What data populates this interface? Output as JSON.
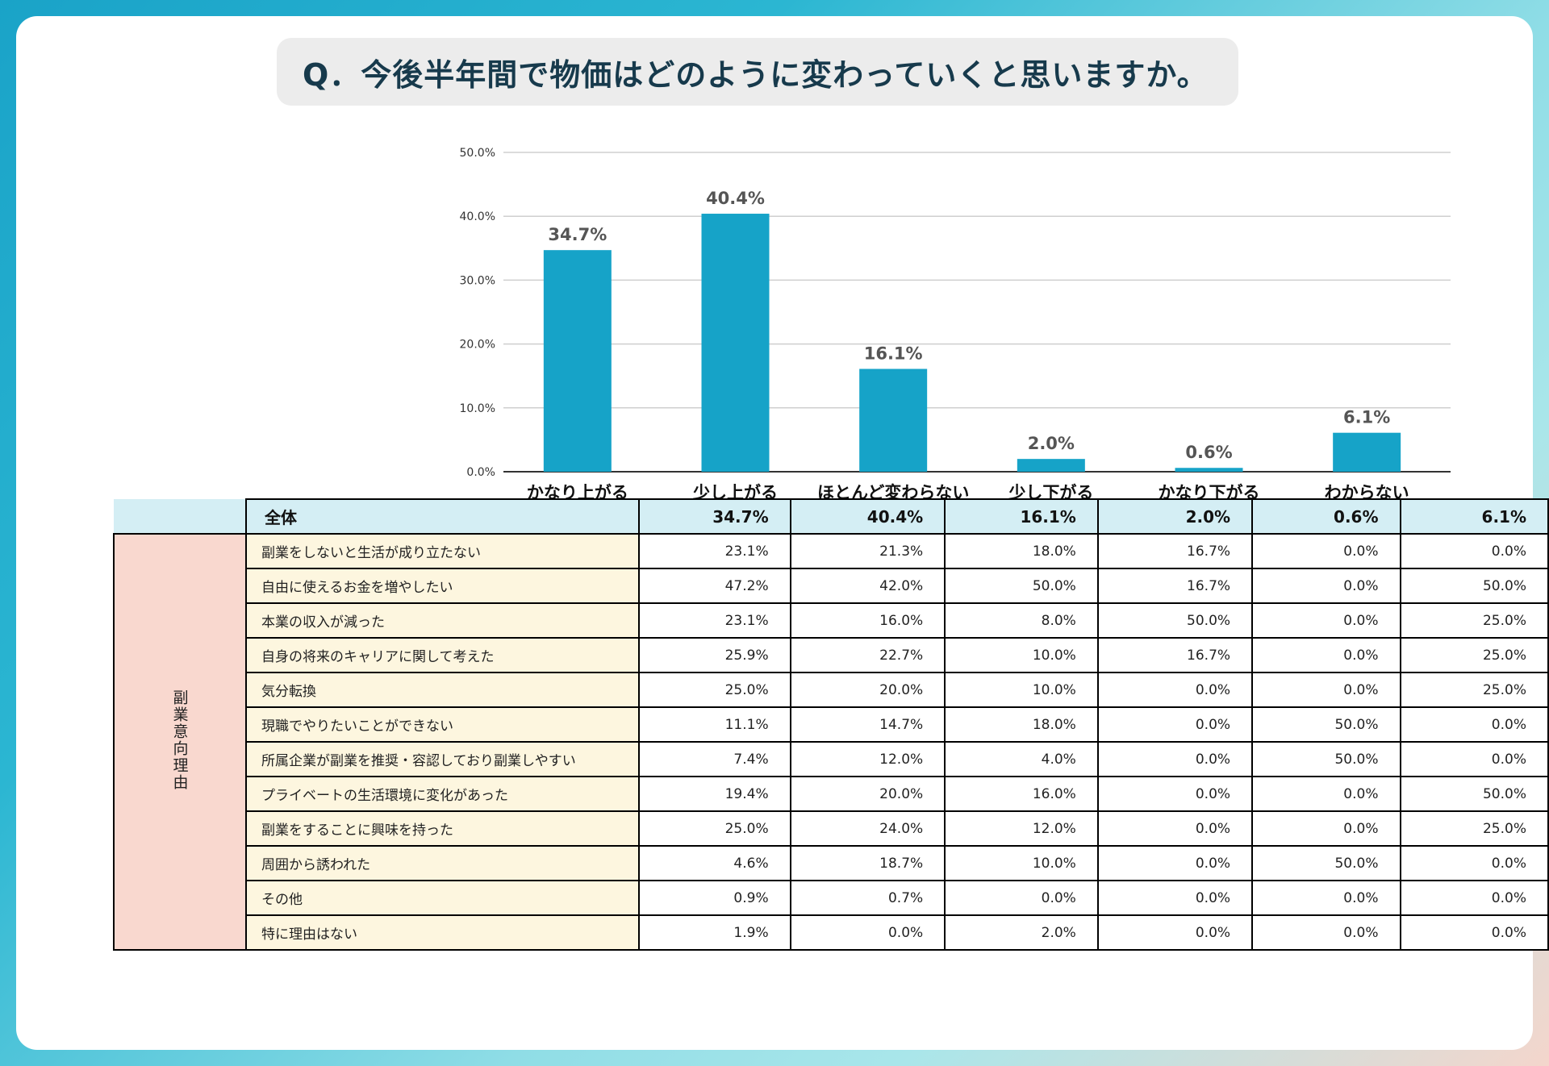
{
  "question": "Q．今後半年間で物価はどのように変わっていくと思いますか。",
  "chart_data": {
    "type": "bar",
    "title": "Q．今後半年間で物価はどのように変わっていくと思いますか。",
    "categories": [
      "かなり上がる",
      "少し上がる",
      "ほとんど変わらない",
      "少し下がる",
      "かなり下がる",
      "わからない"
    ],
    "values": [
      34.7,
      40.4,
      16.1,
      2.0,
      0.6,
      6.1
    ],
    "value_labels": [
      "34.7%",
      "40.4%",
      "16.1%",
      "2.0%",
      "0.6%",
      "6.1%"
    ],
    "y_ticks": [
      "0.0%",
      "10.0%",
      "20.0%",
      "30.0%",
      "40.0%",
      "50.0%"
    ],
    "ylim": [
      0,
      50
    ],
    "xlabel": "",
    "ylabel": "",
    "grid": true,
    "bar_color": "#16a3c8"
  },
  "table": {
    "side_label": "副業意向理由",
    "total": {
      "label": "全体",
      "values": [
        "34.7%",
        "40.4%",
        "16.1%",
        "2.0%",
        "0.6%",
        "6.1%"
      ]
    },
    "rows": [
      {
        "label": "副業をしないと生活が成り立たない",
        "values": [
          "23.1%",
          "21.3%",
          "18.0%",
          "16.7%",
          "0.0%",
          "0.0%"
        ]
      },
      {
        "label": "自由に使えるお金を増やしたい",
        "values": [
          "47.2%",
          "42.0%",
          "50.0%",
          "16.7%",
          "0.0%",
          "50.0%"
        ]
      },
      {
        "label": "本業の収入が減った",
        "values": [
          "23.1%",
          "16.0%",
          "8.0%",
          "50.0%",
          "0.0%",
          "25.0%"
        ]
      },
      {
        "label": "自身の将来のキャリアに関して考えた",
        "values": [
          "25.9%",
          "22.7%",
          "10.0%",
          "16.7%",
          "0.0%",
          "25.0%"
        ]
      },
      {
        "label": "気分転換",
        "values": [
          "25.0%",
          "20.0%",
          "10.0%",
          "0.0%",
          "0.0%",
          "25.0%"
        ]
      },
      {
        "label": "現職でやりたいことができない",
        "values": [
          "11.1%",
          "14.7%",
          "18.0%",
          "0.0%",
          "50.0%",
          "0.0%"
        ]
      },
      {
        "label": "所属企業が副業を推奨・容認しており副業しやすい",
        "values": [
          "7.4%",
          "12.0%",
          "4.0%",
          "0.0%",
          "50.0%",
          "0.0%"
        ]
      },
      {
        "label": "プライベートの生活環境に変化があった",
        "values": [
          "19.4%",
          "20.0%",
          "16.0%",
          "0.0%",
          "0.0%",
          "50.0%"
        ]
      },
      {
        "label": "副業をすることに興味を持った",
        "values": [
          "25.0%",
          "24.0%",
          "12.0%",
          "0.0%",
          "0.0%",
          "25.0%"
        ]
      },
      {
        "label": "周囲から誘われた",
        "values": [
          "4.6%",
          "18.7%",
          "10.0%",
          "0.0%",
          "50.0%",
          "0.0%"
        ]
      },
      {
        "label": "その他",
        "values": [
          "0.9%",
          "0.7%",
          "0.0%",
          "0.0%",
          "0.0%",
          "0.0%"
        ]
      },
      {
        "label": "特に理由はない",
        "values": [
          "1.9%",
          "0.0%",
          "2.0%",
          "0.0%",
          "0.0%",
          "0.0%"
        ]
      }
    ]
  }
}
